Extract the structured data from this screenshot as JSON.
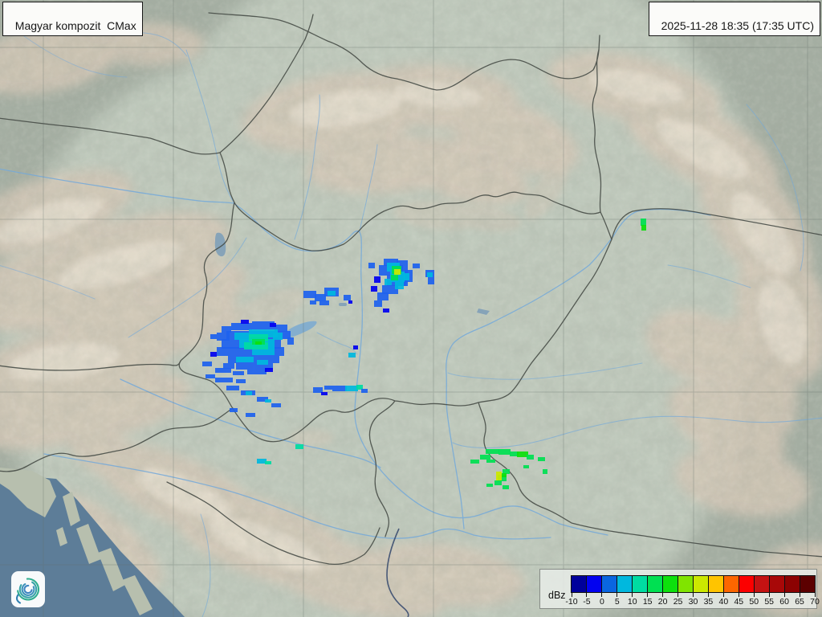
{
  "header": {
    "product_label": "Magyar kompozit  CMax",
    "timestamp_label": "2025-11-28 18:35 (17:35 UTC)"
  },
  "legend": {
    "unit_label": "dBz",
    "tick_labels": [
      "-10",
      "-5",
      "0",
      "5",
      "10",
      "15",
      "20",
      "25",
      "30",
      "35",
      "40",
      "45",
      "50",
      "55",
      "60",
      "65",
      "70"
    ],
    "colors": [
      "#00009B",
      "#0202F0",
      "#0A66E0",
      "#00B8DE",
      "#00DCA2",
      "#00E052",
      "#0DE00D",
      "#80E400",
      "#CCE800",
      "#FFC400",
      "#FC6600",
      "#FC0000",
      "#C41212",
      "#A80808",
      "#8C0202",
      "#5C0000"
    ]
  },
  "logo": {
    "name": "hungaromet-spiral-logo",
    "arc_colors": [
      "#2FAE8F",
      "#37A2A8",
      "#3E93BB",
      "#3F86C2",
      "#2E7FB0"
    ]
  },
  "map": {
    "description": "radar-composite-map-hungary",
    "colors": {
      "land_base": "#A5AFA3",
      "inner_composite": "#DCE6D8",
      "mountain": "#D5C8B7",
      "mountain_highlight": "#EFE7D9",
      "sea": "#5D7D98",
      "island_land": "#B7BFAE",
      "river": "#74A9DA",
      "dark_river": "#3A4C70",
      "lake": "#84AECE",
      "lake_gray": "#86A3B8",
      "border": "#474D47",
      "grid": "#66716A"
    },
    "echo_palette": {
      "d": "#0202F0",
      "b": "#1E62EE",
      "c": "#00B8DE",
      "t": "#00DCA2",
      "g": "#00E052",
      "gg": "#0DE00D",
      "y": "#CCE800"
    },
    "echo_clusters": [
      {
        "name": "west-transdanubia-cluster",
        "cells": [
          [
            "b",
            262,
            416,
            8,
            6
          ],
          [
            "b",
            276,
            406,
            12,
            8
          ],
          [
            "b",
            288,
            402,
            26,
            9
          ],
          [
            "b",
            314,
            400,
            28,
            10
          ],
          [
            "b",
            342,
            404,
            16,
            9
          ],
          [
            "b",
            270,
            414,
            16,
            10
          ],
          [
            "b",
            282,
            412,
            64,
            10
          ],
          [
            "b",
            346,
            412,
            16,
            10
          ],
          [
            "b",
            358,
            420,
            8,
            9
          ],
          [
            "b",
            276,
            422,
            74,
            12
          ],
          [
            "b",
            270,
            432,
            84,
            11
          ],
          [
            "b",
            284,
            443,
            64,
            9
          ],
          [
            "b",
            294,
            452,
            46,
            8
          ],
          [
            "b",
            278,
            452,
            14,
            7
          ],
          [
            "b",
            308,
            460,
            24,
            6
          ],
          [
            "b",
            252,
            450,
            12,
            6
          ],
          [
            "d",
            300,
            398,
            10,
            5
          ],
          [
            "d",
            336,
            402,
            8,
            5
          ],
          [
            "d",
            262,
            438,
            8,
            6
          ],
          [
            "d",
            330,
            458,
            10,
            5
          ],
          [
            "c",
            292,
            414,
            20,
            9
          ],
          [
            "c",
            310,
            410,
            36,
            10
          ],
          [
            "c",
            298,
            422,
            44,
            11
          ],
          [
            "c",
            314,
            433,
            28,
            9
          ],
          [
            "c",
            340,
            414,
            12,
            9
          ],
          [
            "c",
            294,
            444,
            22,
            7
          ],
          [
            "c",
            320,
            448,
            14,
            6
          ],
          [
            "t",
            310,
            416,
            24,
            9
          ],
          [
            "t",
            304,
            426,
            30,
            9
          ],
          [
            "g",
            314,
            422,
            16,
            7
          ],
          [
            "gg",
            318,
            425,
            8,
            4
          ],
          [
            "b",
            268,
            458,
            20,
            6
          ],
          [
            "b",
            290,
            462,
            14,
            5
          ],
          [
            "b",
            256,
            466,
            12,
            5
          ],
          [
            "b",
            268,
            470,
            22,
            6
          ],
          [
            "b",
            294,
            472,
            12,
            5
          ],
          [
            "b",
            282,
            480,
            16,
            6
          ],
          [
            "b",
            300,
            486,
            18,
            6
          ],
          [
            "c",
            306,
            487,
            8,
            5
          ],
          [
            "b",
            320,
            494,
            14,
            6
          ],
          [
            "c",
            330,
            497,
            8,
            4
          ],
          [
            "b",
            338,
            502,
            12,
            5
          ],
          [
            "b",
            286,
            508,
            10,
            5
          ],
          [
            "b",
            306,
            514,
            12,
            5
          ]
        ]
      },
      {
        "name": "mid-transdanubia-fragments",
        "cells": [
          [
            "b",
            378,
            362,
            16,
            9
          ],
          [
            "b",
            392,
            366,
            14,
            9
          ],
          [
            "b",
            404,
            358,
            18,
            11
          ],
          [
            "c",
            408,
            362,
            10,
            6
          ],
          [
            "b",
            398,
            374,
            12,
            6
          ],
          [
            "b",
            386,
            374,
            8,
            5
          ],
          [
            "b",
            428,
            367,
            9,
            7
          ],
          [
            "d",
            434,
            374,
            5,
            4
          ],
          [
            "c",
            434,
            439,
            9,
            6
          ],
          [
            "d",
            440,
            430,
            6,
            5
          ]
        ]
      },
      {
        "name": "south-transdanubia-line",
        "cells": [
          [
            "b",
            390,
            482,
            12,
            7
          ],
          [
            "b",
            404,
            480,
            10,
            5
          ],
          [
            "b",
            414,
            480,
            18,
            7
          ],
          [
            "c",
            430,
            480,
            16,
            7
          ],
          [
            "t",
            444,
            479,
            8,
            6
          ],
          [
            "b",
            450,
            484,
            8,
            5
          ],
          [
            "d",
            400,
            488,
            8,
            4
          ],
          [
            "t",
            368,
            553,
            10,
            6
          ],
          [
            "c",
            320,
            571,
            12,
            6
          ],
          [
            "t",
            330,
            574,
            8,
            4
          ]
        ]
      },
      {
        "name": "budapest-area-cluster",
        "cells": [
          [
            "b",
            478,
            322,
            18,
            9
          ],
          [
            "b",
            472,
            330,
            30,
            13
          ],
          [
            "b",
            482,
            342,
            24,
            14
          ],
          [
            "b",
            476,
            355,
            20,
            11
          ],
          [
            "b",
            470,
            364,
            14,
            10
          ],
          [
            "b",
            466,
            374,
            10,
            8
          ],
          [
            "b",
            494,
            324,
            14,
            32
          ],
          [
            "b",
            504,
            336,
            10,
            15
          ],
          [
            "d",
            466,
            344,
            8,
            8
          ],
          [
            "d",
            462,
            356,
            8,
            7
          ],
          [
            "b",
            459,
            327,
            8,
            7
          ],
          [
            "b",
            514,
            328,
            9,
            6
          ],
          [
            "b",
            530,
            336,
            11,
            9
          ],
          [
            "b",
            533,
            345,
            8,
            9
          ],
          [
            "d",
            477,
            384,
            8,
            5
          ],
          [
            "c",
            482,
            327,
            16,
            11
          ],
          [
            "c",
            486,
            338,
            18,
            13
          ],
          [
            "c",
            492,
            351,
            11,
            9
          ],
          [
            "c",
            479,
            347,
            9,
            8
          ],
          [
            "c",
            503,
            340,
            7,
            9
          ],
          [
            "c",
            532,
            339,
            7,
            6
          ],
          [
            "g",
            488,
            331,
            12,
            10
          ],
          [
            "g",
            487,
            342,
            9,
            7
          ],
          [
            "y",
            491,
            335,
            8,
            7
          ]
        ]
      },
      {
        "name": "southern-border-green-cluster",
        "cells": [
          [
            "g",
            586,
            572,
            11,
            5
          ],
          [
            "g",
            598,
            566,
            13,
            6
          ],
          [
            "g",
            605,
            559,
            17,
            6
          ],
          [
            "g",
            621,
            559,
            15,
            7
          ],
          [
            "g",
            635,
            562,
            11,
            6
          ],
          [
            "gg",
            644,
            562,
            14,
            7
          ],
          [
            "g",
            656,
            566,
            9,
            6
          ],
          [
            "g",
            670,
            569,
            9,
            5
          ],
          [
            "g",
            606,
            572,
            11,
            4
          ],
          [
            "g",
            626,
            584,
            9,
            6
          ],
          [
            "g",
            620,
            591,
            11,
            8
          ],
          [
            "g",
            616,
            598,
            9,
            6
          ],
          [
            "g",
            626,
            604,
            8,
            5
          ],
          [
            "g",
            606,
            602,
            8,
            4
          ],
          [
            "g",
            652,
            579,
            7,
            4
          ],
          [
            "g",
            676,
            584,
            6,
            6
          ],
          [
            "y",
            618,
            587,
            7,
            11
          ],
          [
            "gg",
            625,
            589,
            6,
            5
          ]
        ]
      },
      {
        "name": "northeast-dot",
        "cells": [
          [
            "g",
            798,
            272,
            7,
            9
          ],
          [
            "gg",
            799,
            280,
            6,
            7
          ]
        ]
      }
    ]
  }
}
